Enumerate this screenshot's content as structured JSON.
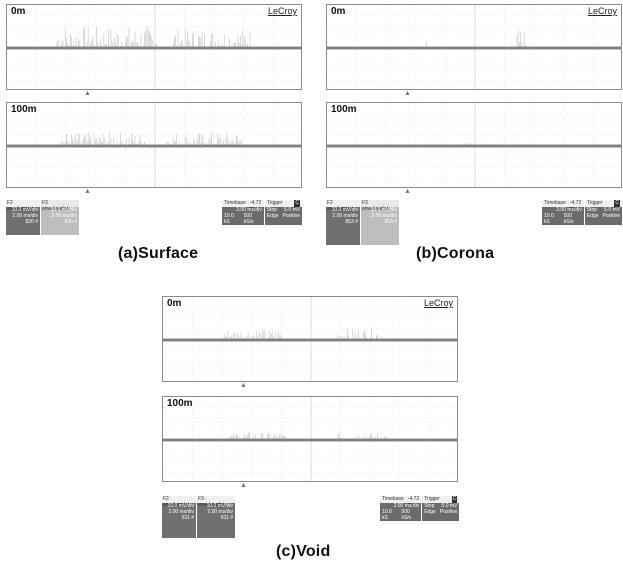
{
  "figures": [
    {
      "id": "a",
      "caption": "(a)Surface",
      "top_label": "0m",
      "bottom_label": "100m",
      "logo": "LeCroy",
      "ch2": {
        "header": "F2 envelope(at..",
        "v1": "10.0 mV/div",
        "v2": "2.00 ms/div",
        "v3": "820 #"
      },
      "ch3": {
        "header": "F3 envelope(at..",
        "v1": "10.0 mV/div",
        "v2": "2.00 ms/div",
        "v3": "820 #"
      },
      "timebase": {
        "label": "Timebase",
        "value": "-4.72 ms",
        "rate": "2.00 ms/div",
        "samples": "10.0 kS",
        "srate": "500 kS/s"
      },
      "trigger": {
        "label": "Trigger",
        "mode": "Stop",
        "level": "5.0 mV",
        "type": "Edge",
        "slope": "Positive"
      }
    },
    {
      "id": "b",
      "caption": "(b)Corona",
      "top_label": "0m",
      "bottom_label": "100m",
      "logo": "LeCroy",
      "ch2": {
        "header": "F2 envelope(at..",
        "v1": "10.0 mV/div",
        "v2": "2.00 ms/div",
        "v3": "853 #"
      },
      "ch3": {
        "header": "F3 envelope(at..",
        "v1": "10.0 mV/div",
        "v2": "2.00 ms/div",
        "v3": "853 #"
      },
      "timebase": {
        "label": "Timebase",
        "value": "-4.72 ms",
        "rate": "2.00 ms/div",
        "samples": "10.0 kS",
        "srate": "500 kS/s"
      },
      "trigger": {
        "label": "Trigger",
        "mode": "Stop",
        "level": "5.0 mV",
        "type": "Edge",
        "slope": "Positive"
      }
    },
    {
      "id": "c",
      "caption": "(c)Void",
      "top_label": "0m",
      "bottom_label": "100m",
      "logo": "LeCroy",
      "ch2": {
        "header": "F2 envelope(at..",
        "v1": "10.0 mV/div",
        "v2": "2.00 ms/div",
        "v3": "811 #"
      },
      "ch3": {
        "header": "F3 envelope(at..",
        "v1": "10.0 mV/div",
        "v2": "2.00 ms/div",
        "v3": "811 #"
      },
      "timebase": {
        "label": "Timebase",
        "value": "-4.72 ms",
        "rate": "2.00 ms/div",
        "samples": "10.0 kS",
        "srate": "500 kS/s"
      },
      "trigger": {
        "label": "Trigger",
        "mode": "Stop",
        "level": "5.0 mV",
        "type": "Edge",
        "slope": "Positive"
      }
    }
  ]
}
